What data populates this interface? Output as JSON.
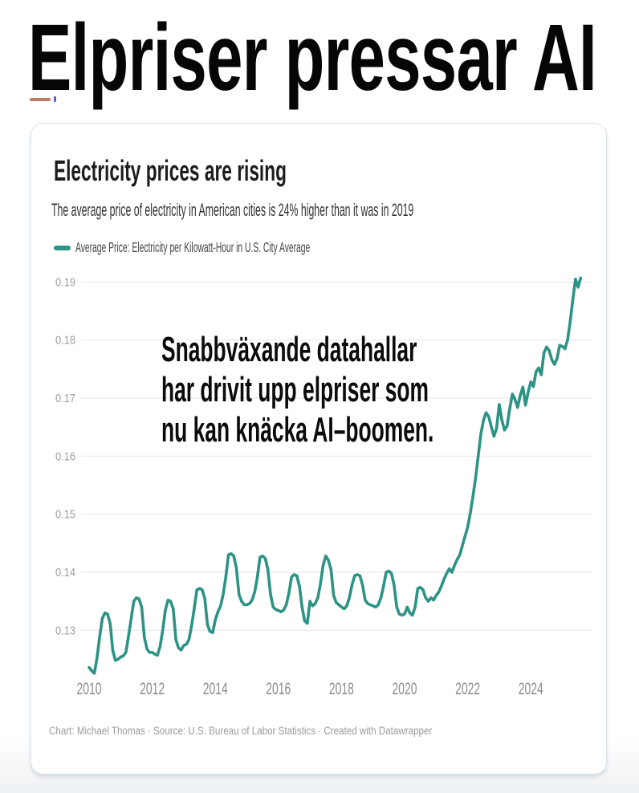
{
  "page": {
    "headline": "Elpriser pressar AI",
    "accent_dash_color": "#bf7a5d",
    "footnote_mark_color": "#6b5fc7"
  },
  "card": {
    "title": "Electricity prices are rising",
    "subtitle": "The average price of electricity in American cities is 24% higher than it was in 2019",
    "legend": {
      "label": "Average Price: Electricity per Kilowatt-Hour in U.S. City Average",
      "color": "#2d9384"
    },
    "annotation": {
      "line1": "Snabbväxande datahallar",
      "line2": "har drivit upp elpriser som",
      "line3": "nu kan knäcka AI–boomen."
    },
    "footer": "Chart: Michael Thomas · Source: U.S. Bureau of Labor Statistics · Created with Datawrapper"
  },
  "chart_data": {
    "type": "line",
    "title": "Electricity prices are rising",
    "subtitle": "The average price of electricity in American cities is 24% higher than it was in 2019",
    "series_name": "Average Price: Electricity per Kilowatt-Hour in U.S. City Average",
    "unit": "USD per kWh",
    "frequency": "monthly",
    "x_start_year": 2010,
    "xlim": [
      2010,
      2025.9
    ],
    "ylim": [
      0.121,
      0.193
    ],
    "grid": "horizontal",
    "legend_position": "top-left",
    "line_color": "#2d9384",
    "grid_color": "#e6e6e6",
    "y_label_color": "#9e9e9e",
    "x_label_color": "#8c8c8c",
    "y_ticks": [
      0.13,
      0.14,
      0.15,
      0.16,
      0.17,
      0.18,
      0.19
    ],
    "x_ticks": [
      2010,
      2012,
      2014,
      2016,
      2018,
      2020,
      2022,
      2024
    ],
    "values": [
      0.1236,
      0.123,
      0.1226,
      0.1252,
      0.1288,
      0.132,
      0.133,
      0.1328,
      0.1312,
      0.1265,
      0.1248,
      0.125,
      0.1254,
      0.1256,
      0.1262,
      0.129,
      0.132,
      0.135,
      0.1356,
      0.1354,
      0.134,
      0.1288,
      0.1268,
      0.1262,
      0.1262,
      0.1259,
      0.1257,
      0.1272,
      0.13,
      0.1335,
      0.1352,
      0.135,
      0.1337,
      0.1284,
      0.127,
      0.1266,
      0.1274,
      0.1276,
      0.1284,
      0.1308,
      0.1338,
      0.137,
      0.1372,
      0.137,
      0.1355,
      0.131,
      0.1298,
      0.1296,
      0.1318,
      0.1332,
      0.1342,
      0.1362,
      0.1392,
      0.143,
      0.1432,
      0.1428,
      0.1408,
      0.1362,
      0.135,
      0.1344,
      0.1344,
      0.1346,
      0.1352,
      0.1366,
      0.1392,
      0.1426,
      0.1428,
      0.1424,
      0.1405,
      0.1362,
      0.134,
      0.1336,
      0.1334,
      0.1332,
      0.1335,
      0.1344,
      0.1364,
      0.1392,
      0.1396,
      0.1394,
      0.1376,
      0.134,
      0.1316,
      0.1312,
      0.135,
      0.1342,
      0.1346,
      0.1356,
      0.138,
      0.1412,
      0.1428,
      0.1421,
      0.1405,
      0.136,
      0.1348,
      0.1344,
      0.134,
      0.1337,
      0.1342,
      0.1356,
      0.1378,
      0.1394,
      0.1396,
      0.1394,
      0.1378,
      0.1352,
      0.1346,
      0.1344,
      0.1342,
      0.134,
      0.1344,
      0.1356,
      0.1376,
      0.14,
      0.1402,
      0.1398,
      0.1378,
      0.134,
      0.1328,
      0.1326,
      0.1328,
      0.134,
      0.133,
      0.1326,
      0.134,
      0.1372,
      0.1374,
      0.137,
      0.1356,
      0.135,
      0.1356,
      0.1352,
      0.136,
      0.1366,
      0.1376,
      0.1388,
      0.1398,
      0.1406,
      0.14,
      0.1412,
      0.1422,
      0.143,
      0.1446,
      0.1462,
      0.1478,
      0.1502,
      0.153,
      0.1562,
      0.16,
      0.1638,
      0.1662,
      0.1675,
      0.1668,
      0.165,
      0.1634,
      0.1648,
      0.1689,
      0.1662,
      0.1645,
      0.1652,
      0.1682,
      0.1707,
      0.1698,
      0.1684,
      0.1705,
      0.1719,
      0.1688,
      0.171,
      0.1728,
      0.172,
      0.1745,
      0.1752,
      0.174,
      0.1778,
      0.1788,
      0.1782,
      0.1766,
      0.1758,
      0.1768,
      0.1791,
      0.1789,
      0.1785,
      0.18,
      0.1832,
      0.187,
      0.1905,
      0.1891,
      0.1907
    ]
  }
}
